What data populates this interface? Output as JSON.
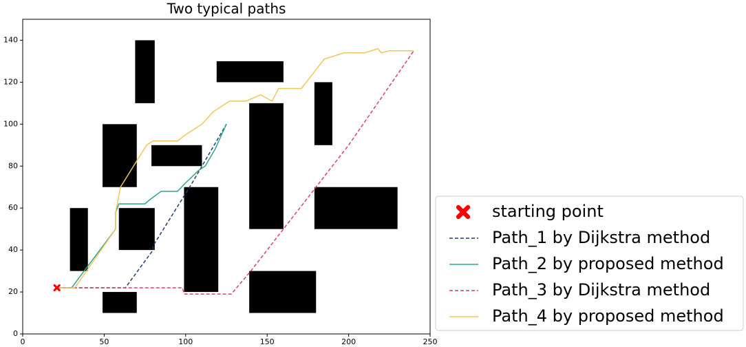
{
  "chart_data": {
    "type": "line",
    "title": "Two typical paths",
    "xlim": [
      0,
      250
    ],
    "ylim": [
      0,
      150
    ],
    "xticks": [
      0,
      50,
      100,
      150,
      200,
      250
    ],
    "yticks": [
      0,
      20,
      40,
      60,
      80,
      100,
      120,
      140
    ],
    "obstacle_color": "#000000",
    "obstacles": [
      {
        "x": [
          29,
          40
        ],
        "y": [
          30,
          60
        ]
      },
      {
        "x": [
          49,
          70
        ],
        "y": [
          70,
          100
        ]
      },
      {
        "x": [
          69,
          81
        ],
        "y": [
          110,
          140
        ]
      },
      {
        "x": [
          59,
          81
        ],
        "y": [
          40,
          60
        ]
      },
      {
        "x": [
          49,
          70
        ],
        "y": [
          10,
          20
        ]
      },
      {
        "x": [
          79,
          110
        ],
        "y": [
          80,
          90
        ]
      },
      {
        "x": [
          99,
          120
        ],
        "y": [
          20,
          70
        ]
      },
      {
        "x": [
          119,
          160
        ],
        "y": [
          120,
          130
        ]
      },
      {
        "x": [
          139,
          160
        ],
        "y": [
          50,
          110
        ]
      },
      {
        "x": [
          179,
          190
        ],
        "y": [
          90,
          120
        ]
      },
      {
        "x": [
          179,
          230
        ],
        "y": [
          50,
          70
        ]
      },
      {
        "x": [
          139,
          180
        ],
        "y": [
          10,
          30
        ]
      }
    ],
    "start": {
      "name": "starting point",
      "x": 21,
      "y": 22,
      "color": "#ff0000"
    },
    "series": [
      {
        "name": "Path_1 by Dijkstra method",
        "color": "#1f3c6e",
        "style": "dashed",
        "x": [
          21,
          63,
          80,
          80,
          104,
          125
        ],
        "y": [
          22,
          22,
          40,
          42,
          72,
          100
        ]
      },
      {
        "name": "Path_2 by proposed method",
        "color": "#2ca58d",
        "style": "solid",
        "x": [
          21,
          30,
          57,
          57,
          59,
          75,
          78,
          85,
          95,
          100,
          108,
          112,
          118,
          125
        ],
        "y": [
          22,
          22,
          50,
          58,
          62,
          62,
          64,
          68,
          68,
          72,
          78,
          80,
          88,
          100
        ]
      },
      {
        "name": "Path_3 by Dijkstra method",
        "color": "#e6396f",
        "style": "dashed",
        "x": [
          21,
          98,
          99,
          128,
          140,
          160,
          200,
          240
        ],
        "y": [
          22,
          22,
          19,
          19,
          30,
          50,
          90,
          135
        ]
      },
      {
        "name": "Path_4 by proposed method",
        "color": "#f2c55c",
        "style": "solid",
        "x": [
          21,
          32,
          57,
          57,
          60,
          68,
          76,
          80,
          95,
          100,
          110,
          117,
          127,
          137,
          146,
          153,
          157,
          165,
          171,
          185,
          197,
          210,
          218,
          220,
          225,
          240
        ],
        "y": [
          22,
          22,
          50,
          58,
          70,
          80,
          90,
          92,
          92,
          95,
          100,
          106,
          111,
          111,
          114,
          111,
          117,
          117,
          117,
          131,
          134,
          134,
          136,
          134,
          135,
          135
        ]
      }
    ]
  }
}
